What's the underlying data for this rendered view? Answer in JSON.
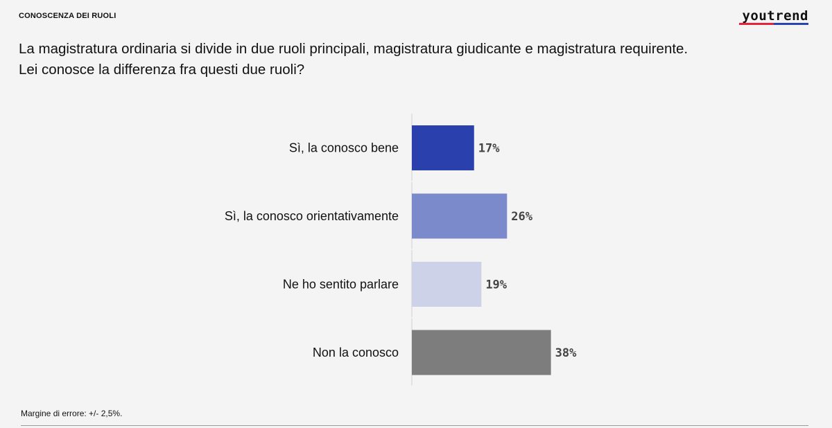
{
  "header": {
    "section_label": "CONOSCENZA DEI RUOLI",
    "brand": "youtrend"
  },
  "question": "La magistratura ordinaria si divide in due ruoli principali, magistratura giudicante e magistratura requirente. Lei conosce la differenza fra questi due ruoli?",
  "chart_data": {
    "type": "bar",
    "orientation": "horizontal",
    "categories": [
      "Sì, la conosco bene",
      "Sì, la conosco orientativamente",
      "Ne ho sentito parlare",
      "Non la conosco"
    ],
    "values": [
      17,
      26,
      19,
      38
    ],
    "value_labels": [
      "17%",
      "26%",
      "19%",
      "38%"
    ],
    "colors": [
      "#2a41ad",
      "#7b8acb",
      "#cdd2e8",
      "#7d7d7d"
    ],
    "grid": false
  },
  "footer": {
    "note": "Margine di errore: +/- 2,5%."
  }
}
